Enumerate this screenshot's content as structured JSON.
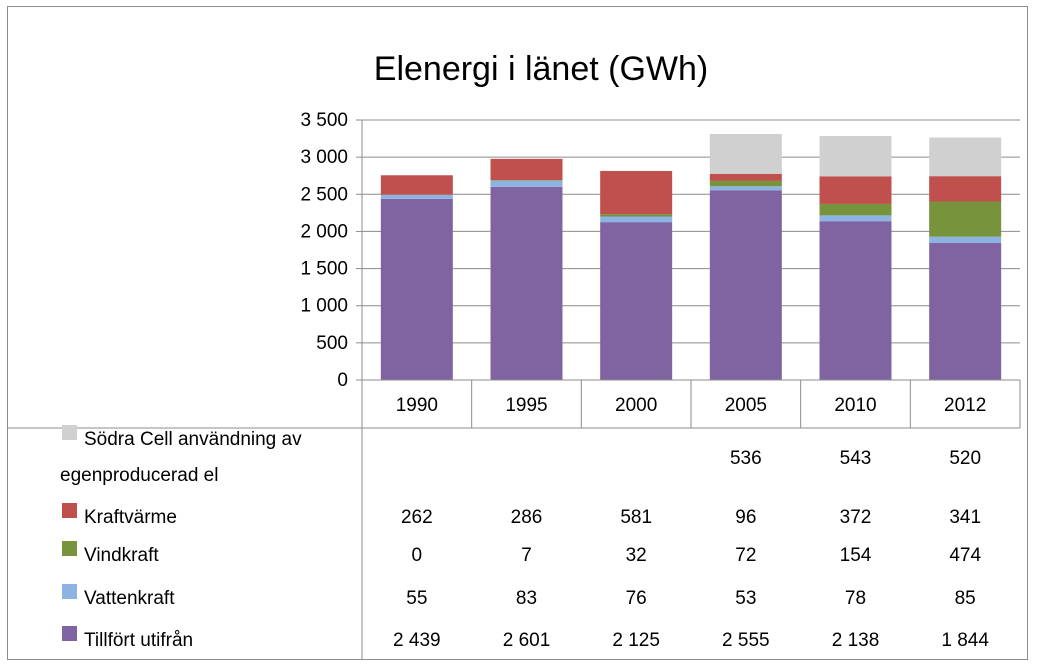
{
  "chart_data": {
    "type": "bar",
    "stacked": true,
    "title": "Elenergi i länet (GWh)",
    "categories": [
      "1990",
      "1995",
      "2000",
      "2005",
      "2010",
      "2012"
    ],
    "ylim": [
      0,
      3500
    ],
    "y_ticks": [
      "3 500",
      "3 000",
      "2 500",
      "2 000",
      "1 500",
      "1 000",
      "500",
      "0"
    ],
    "y_tick_values": [
      3500,
      3000,
      2500,
      2000,
      1500,
      1000,
      500,
      0
    ],
    "grid": true,
    "legend": "data table",
    "series": [
      {
        "name": "Tillfört utifrån",
        "color": "#8064a2",
        "values": [
          2439,
          2601,
          2125,
          2555,
          2138,
          1844
        ],
        "labels": [
          "2 439",
          "2 601",
          "2 125",
          "2 555",
          "2 138",
          "1 844"
        ]
      },
      {
        "name": "Vattenkraft",
        "color": "#8db3e2",
        "values": [
          55,
          83,
          76,
          53,
          78,
          85
        ],
        "labels": [
          "55",
          "83",
          "76",
          "53",
          "78",
          "85"
        ]
      },
      {
        "name": "Vindkraft",
        "color": "#77933c",
        "values": [
          0,
          7,
          32,
          72,
          154,
          474
        ],
        "labels": [
          "0",
          "7",
          "32",
          "72",
          "154",
          "474"
        ]
      },
      {
        "name": "Kraftvärme",
        "color": "#c0504d",
        "values": [
          262,
          286,
          581,
          96,
          372,
          341
        ],
        "labels": [
          "262",
          "286",
          "581",
          "96",
          "372",
          "341"
        ]
      },
      {
        "name_lines": [
          "Södra Cell användning av",
          "egenproducerad el"
        ],
        "color": "#d0d0d0",
        "values": [
          null,
          null,
          null,
          536,
          543,
          520
        ],
        "labels": [
          "",
          "",
          "",
          "536",
          "543",
          "520"
        ]
      }
    ]
  }
}
